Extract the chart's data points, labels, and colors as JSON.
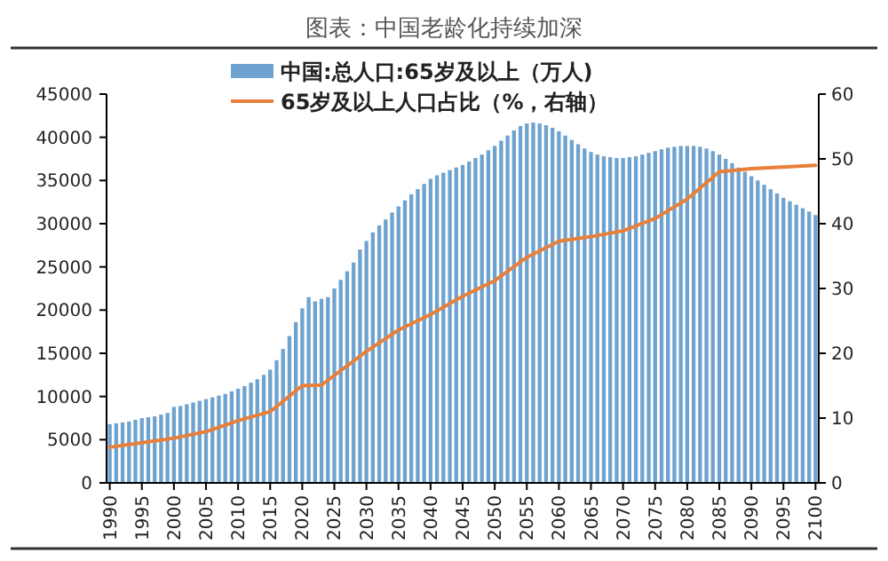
{
  "chart_data": {
    "type": "bar",
    "title": "图表：中国老龄化持续加深",
    "x": [
      1990,
      1991,
      1992,
      1993,
      1994,
      1995,
      1996,
      1997,
      1998,
      1999,
      2000,
      2001,
      2002,
      2003,
      2004,
      2005,
      2006,
      2007,
      2008,
      2009,
      2010,
      2011,
      2012,
      2013,
      2014,
      2015,
      2016,
      2017,
      2018,
      2019,
      2020,
      2021,
      2022,
      2023,
      2024,
      2025,
      2026,
      2027,
      2028,
      2029,
      2030,
      2031,
      2032,
      2033,
      2034,
      2035,
      2036,
      2037,
      2038,
      2039,
      2040,
      2041,
      2042,
      2043,
      2044,
      2045,
      2046,
      2047,
      2048,
      2049,
      2050,
      2051,
      2052,
      2053,
      2054,
      2055,
      2056,
      2057,
      2058,
      2059,
      2060,
      2061,
      2062,
      2063,
      2064,
      2065,
      2066,
      2067,
      2068,
      2069,
      2070,
      2071,
      2072,
      2073,
      2074,
      2075,
      2076,
      2077,
      2078,
      2079,
      2080,
      2081,
      2082,
      2083,
      2084,
      2085,
      2086,
      2087,
      2088,
      2089,
      2090,
      2091,
      2092,
      2093,
      2094,
      2095,
      2096,
      2097,
      2098,
      2099,
      2100
    ],
    "series": [
      {
        "name": "中国:总人口:65岁及以上（万人)",
        "color": "#6fa3cf",
        "values": [
          6800,
          6900,
          7000,
          7100,
          7300,
          7500,
          7600,
          7700,
          7900,
          8100,
          8800,
          8900,
          9100,
          9300,
          9500,
          9700,
          9900,
          10100,
          10300,
          10600,
          10900,
          11200,
          11600,
          12000,
          12500,
          13100,
          14200,
          15500,
          17000,
          18600,
          20200,
          21500,
          21000,
          21300,
          21500,
          22500,
          23500,
          24500,
          25500,
          27000,
          28000,
          29000,
          29800,
          30500,
          31300,
          32000,
          32700,
          33400,
          34000,
          34600,
          35200,
          35600,
          35900,
          36200,
          36500,
          36800,
          37200,
          37600,
          38000,
          38500,
          39000,
          39600,
          40200,
          40800,
          41300,
          41600,
          41700,
          41600,
          41400,
          41100,
          40700,
          40200,
          39700,
          39200,
          38700,
          38300,
          38000,
          37800,
          37700,
          37600,
          37600,
          37700,
          37800,
          38000,
          38200,
          38400,
          38600,
          38800,
          38900,
          39000,
          39000,
          39000,
          38900,
          38700,
          38400,
          38000,
          37500,
          37000,
          36500,
          36000,
          35500,
          35000,
          34500,
          34000,
          33500,
          33000,
          32600,
          32200,
          31800,
          31400,
          31000
        ]
      },
      {
        "name": "65岁及以上人口占比（%，右轴）",
        "type": "line",
        "axis": "y2",
        "color": "#e8803a",
        "x": [
          1990,
          1995,
          2000,
          2005,
          2010,
          2015,
          2020,
          2023,
          2030,
          2035,
          2040,
          2045,
          2050,
          2055,
          2060,
          2065,
          2070,
          2075,
          2080,
          2085,
          2090,
          2100
        ],
        "values": [
          5.5,
          6.2,
          6.9,
          7.9,
          9.6,
          11,
          15,
          15.1,
          20.3,
          23.6,
          26,
          28.8,
          31.2,
          34.8,
          37.3,
          38,
          38.9,
          40.8,
          43.8,
          48,
          48.5,
          49
        ]
      }
    ],
    "xlim": [
      1989.5,
      2100.5
    ],
    "xticks": [
      1990,
      1995,
      2000,
      2005,
      2010,
      2015,
      2020,
      2025,
      2030,
      2035,
      2040,
      2045,
      2050,
      2055,
      2060,
      2065,
      2070,
      2075,
      2080,
      2085,
      2090,
      2095,
      2100
    ],
    "ylim": [
      0,
      45000
    ],
    "yticks": [
      0,
      5000,
      10000,
      15000,
      20000,
      25000,
      30000,
      35000,
      40000,
      45000
    ],
    "y2lim": [
      0,
      60
    ],
    "y2ticks": [
      0,
      10,
      20,
      30,
      40,
      50,
      60
    ],
    "legend": "top",
    "grid": false
  }
}
